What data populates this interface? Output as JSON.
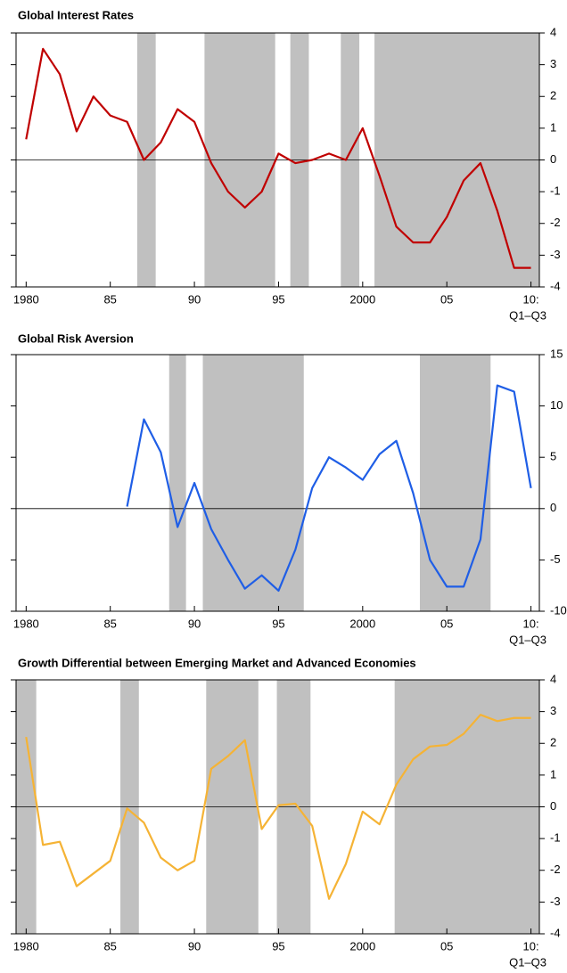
{
  "chart_data": [
    {
      "type": "line",
      "title": "Global Interest Rates",
      "color": "#c00000",
      "x": [
        1980,
        1981,
        1982,
        1983,
        1984,
        1985,
        1986,
        1987,
        1988,
        1989,
        1990,
        1991,
        1992,
        1993,
        1994,
        1995,
        1996,
        1997,
        1998,
        1999,
        2000,
        2001,
        2002,
        2003,
        2004,
        2005,
        2006,
        2007,
        2008,
        2009,
        2010
      ],
      "values": [
        0.65,
        3.5,
        2.7,
        0.9,
        2.0,
        1.4,
        1.2,
        0,
        0.55,
        1.6,
        1.2,
        -0.1,
        -1.0,
        -1.5,
        -1.0,
        0.2,
        -0.1,
        0,
        0.2,
        0,
        1.0,
        -0.5,
        -2.1,
        -2.6,
        -2.6,
        -1.8,
        -0.65,
        -0.1,
        -1.6,
        -3.4,
        -3.4
      ],
      "shaded": [
        [
          1986.6,
          1987.7
        ],
        [
          1990.6,
          1994.8
        ],
        [
          1995.7,
          1996.8
        ],
        [
          1998.7,
          1999.8
        ],
        [
          2000.7,
          2010.5
        ]
      ],
      "xlim": [
        1979.4,
        2010.5
      ],
      "xticks": [
        1980,
        {
          "value": 1985,
          "label": "85"
        },
        {
          "value": 1990,
          "label": "90"
        },
        {
          "value": 1995,
          "label": "95"
        },
        2000,
        {
          "value": 2005,
          "label": "05"
        },
        {
          "value": 2010,
          "label": "10:"
        }
      ],
      "x_note": "Q1–Q3",
      "ylim": [
        -4,
        4
      ],
      "yticks": [
        -4,
        -3,
        -2,
        -1,
        0,
        1,
        2,
        3,
        4
      ],
      "zero_line": true
    },
    {
      "type": "line",
      "title": "Global Risk Aversion",
      "color": "#1f5ee6",
      "x": [
        1986,
        1987,
        1988,
        1989,
        1990,
        1991,
        1992,
        1993,
        1994,
        1995,
        1996,
        1997,
        1998,
        1999,
        2000,
        2001,
        2002,
        2003,
        2004,
        2005,
        2006,
        2007,
        2008,
        2009,
        2010
      ],
      "values": [
        0.2,
        8.7,
        5.5,
        -1.8,
        2.5,
        -2.0,
        -5.0,
        -7.8,
        -6.5,
        -8.0,
        -4.0,
        2.0,
        5.0,
        4.0,
        2.8,
        5.3,
        6.6,
        1.5,
        -5.0,
        -7.6,
        -7.6,
        -3.0,
        12.0,
        11.4,
        2.0
      ],
      "shaded": [
        [
          1988.5,
          1989.5
        ],
        [
          1990.5,
          1996.5
        ],
        [
          2003.4,
          2007.6
        ]
      ],
      "xlim": [
        1979.4,
        2010.5
      ],
      "xticks": [
        1980,
        {
          "value": 1985,
          "label": "85"
        },
        {
          "value": 1990,
          "label": "90"
        },
        {
          "value": 1995,
          "label": "95"
        },
        2000,
        {
          "value": 2005,
          "label": "05"
        },
        {
          "value": 2010,
          "label": "10:"
        }
      ],
      "x_note": "Q1–Q3",
      "ylim": [
        -10,
        15
      ],
      "yticks": [
        -10,
        -5,
        0,
        5,
        10,
        15
      ],
      "zero_line": true
    },
    {
      "type": "line",
      "title": "Growth Differential between Emerging Market and Advanced Economies",
      "color": "#f5b335",
      "x": [
        1980,
        1981,
        1982,
        1983,
        1984,
        1985,
        1986,
        1987,
        1988,
        1989,
        1990,
        1991,
        1992,
        1993,
        1994,
        1995,
        1996,
        1997,
        1998,
        1999,
        2000,
        2001,
        2002,
        2003,
        2004,
        2005,
        2006,
        2007,
        2008,
        2009,
        2010
      ],
      "values": [
        2.2,
        -1.2,
        -1.1,
        -2.5,
        -2.1,
        -1.7,
        -0.05,
        -0.5,
        -1.6,
        -2.0,
        -1.7,
        1.2,
        1.6,
        2.1,
        -0.7,
        0.05,
        0.1,
        -0.6,
        -2.9,
        -1.8,
        -0.15,
        -0.55,
        0.7,
        1.5,
        1.9,
        1.95,
        2.3,
        2.9,
        2.7,
        2.8,
        2.8
      ],
      "shaded": [
        [
          1979.4,
          1980.6
        ],
        [
          1985.6,
          1986.7
        ],
        [
          1990.7,
          1993.8
        ],
        [
          1994.9,
          1996.9
        ],
        [
          2001.9,
          2010.5
        ]
      ],
      "xlim": [
        1979.4,
        2010.5
      ],
      "xticks": [
        1980,
        {
          "value": 1985,
          "label": "85"
        },
        {
          "value": 1990,
          "label": "90"
        },
        {
          "value": 1995,
          "label": "95"
        },
        2000,
        {
          "value": 2005,
          "label": "05"
        },
        {
          "value": 2010,
          "label": "10:"
        }
      ],
      "x_note": "Q1–Q3",
      "ylim": [
        -4,
        4
      ],
      "yticks": [
        -4,
        -3,
        -2,
        -1,
        0,
        1,
        2,
        3,
        4
      ],
      "zero_line": true
    }
  ]
}
